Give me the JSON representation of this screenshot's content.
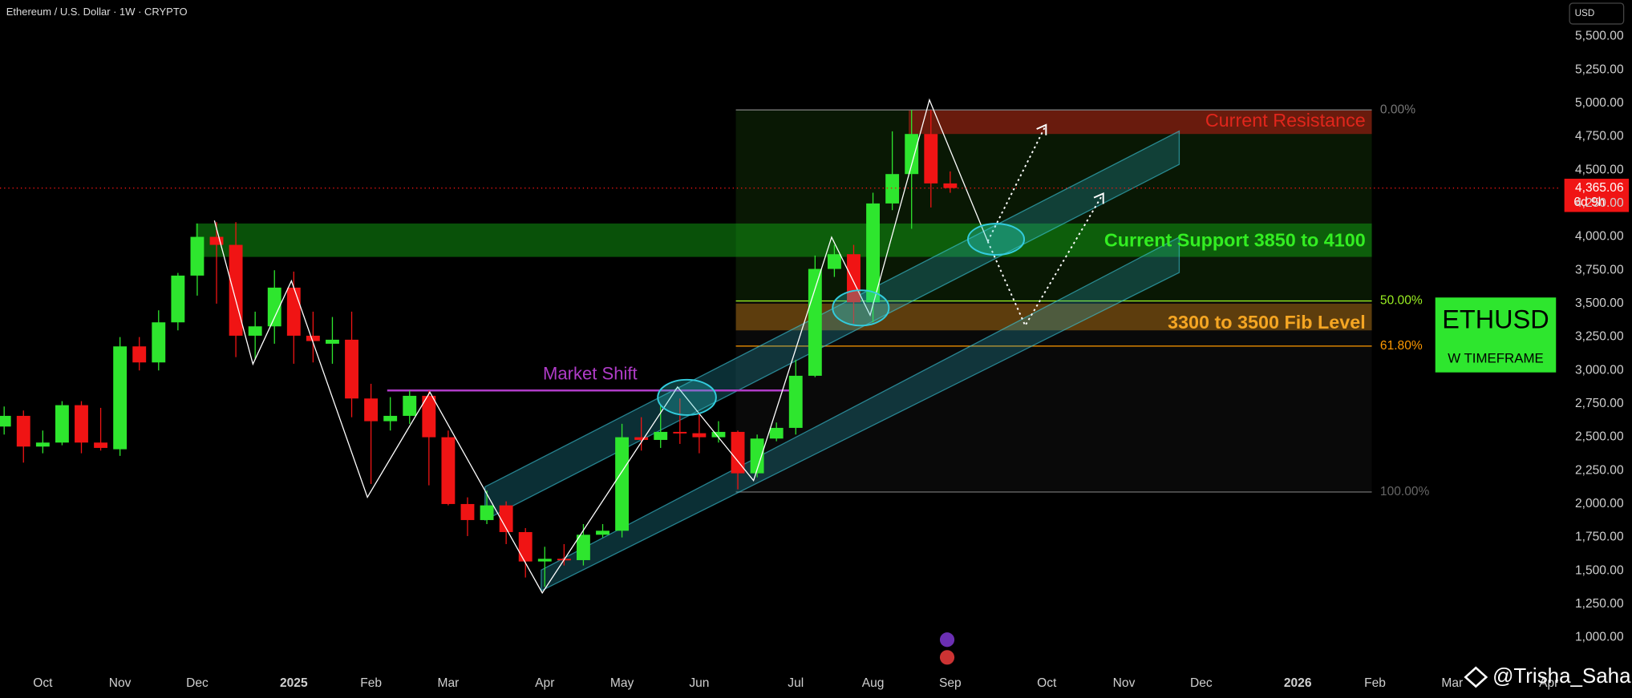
{
  "chart_data": {
    "type": "candlestick",
    "title": "Ethereum / U.S. Dollar · 1W · CRYPTO",
    "currency": "USD",
    "up_color": "#2ee62e",
    "down_color": "#f01414",
    "categories": [
      null,
      null,
      "Oct",
      null,
      null,
      null,
      "Nov",
      null,
      null,
      null,
      "Dec",
      null,
      null,
      null,
      null,
      "2025",
      null,
      null,
      null,
      "Feb",
      null,
      null,
      null,
      "Mar",
      null,
      null,
      null,
      null,
      "Apr",
      null,
      null,
      null,
      "May",
      null,
      null,
      null,
      "Jun",
      null,
      null,
      null,
      null,
      "Jul",
      null,
      null,
      null,
      "Aug",
      null,
      null,
      null,
      "Sep",
      null,
      null,
      null,
      null,
      "Oct",
      null,
      null,
      null,
      "Nov",
      null,
      null,
      null,
      "Dec",
      null,
      null,
      null,
      null,
      "2026",
      null,
      null,
      null,
      "Feb",
      null,
      null,
      null,
      "Mar",
      null,
      null,
      null,
      null,
      "Apr"
    ],
    "open": [
      2580,
      2660,
      2430,
      2460,
      2740,
      2460,
      2410,
      3180,
      3060,
      3360,
      3710,
      4000,
      3940,
      3260,
      3330,
      3620,
      3260,
      3200,
      3230,
      2790,
      2620,
      2660,
      2810,
      2500,
      2000,
      1880,
      1990,
      1790,
      1570,
      1590,
      1580,
      1770,
      1800,
      2500,
      2480,
      2540,
      2530,
      2500,
      2540,
      2230,
      2490,
      2570,
      2960,
      3760,
      3870,
      3510,
      4250,
      4470,
      4770,
      4400,
      null,
      null,
      null,
      null,
      null,
      null,
      null,
      null,
      null,
      null,
      null,
      null,
      null,
      null,
      null,
      null,
      null,
      null,
      null,
      null,
      null,
      null,
      null,
      null,
      null,
      null,
      null,
      null,
      null,
      null,
      null
    ],
    "high": [
      2730,
      2700,
      2550,
      2770,
      2770,
      2720,
      3250,
      3250,
      3450,
      3730,
      4100,
      4110,
      4110,
      3440,
      3750,
      3740,
      3440,
      3400,
      3440,
      2900,
      2800,
      2850,
      2850,
      2550,
      2050,
      2100,
      2020,
      1820,
      1680,
      1700,
      1850,
      1850,
      2600,
      2650,
      2740,
      2790,
      2680,
      2620,
      2550,
      2520,
      2610,
      3080,
      3860,
      3940,
      3940,
      4330,
      4790,
      4950,
      4950,
      4490,
      null,
      null,
      null,
      null,
      null,
      null,
      null,
      null,
      null,
      null,
      null,
      null,
      null,
      null,
      null,
      null,
      null,
      null,
      null,
      null,
      null,
      null,
      null,
      null,
      null,
      null,
      null,
      null,
      null,
      null,
      null
    ],
    "low": [
      2520,
      2310,
      2380,
      2440,
      2380,
      2400,
      2360,
      3000,
      3000,
      3300,
      3560,
      3500,
      3100,
      3080,
      3200,
      3050,
      3060,
      3050,
      2650,
      2150,
      2550,
      2600,
      2140,
      1990,
      1760,
      1850,
      1700,
      1450,
      1380,
      1540,
      1540,
      1750,
      1750,
      2400,
      2420,
      2450,
      2380,
      2460,
      2110,
      2200,
      2470,
      2520,
      2950,
      3700,
      3350,
      3360,
      4200,
      4060,
      4220,
      4330,
      null,
      null,
      null,
      null,
      null,
      null,
      null,
      null,
      null,
      null,
      null,
      null,
      null,
      null,
      null,
      null,
      null,
      null,
      null,
      null,
      null,
      null,
      null,
      null,
      null,
      null,
      null,
      null,
      null,
      null,
      null
    ],
    "close": [
      2660,
      2430,
      2460,
      2740,
      2460,
      2420,
      3180,
      3060,
      3360,
      3710,
      4000,
      3940,
      3260,
      3330,
      3620,
      3260,
      3220,
      3230,
      2790,
      2620,
      2660,
      2810,
      2500,
      2000,
      1880,
      1990,
      1790,
      1570,
      1590,
      1580,
      1770,
      1800,
      2500,
      2480,
      2540,
      2530,
      2500,
      2540,
      2230,
      2490,
      2570,
      2960,
      3760,
      3870,
      3510,
      4250,
      4470,
      4770,
      4400,
      4365.06,
      null,
      null,
      null,
      null,
      null,
      null,
      null,
      null,
      null,
      null,
      null,
      null,
      null,
      null,
      null,
      null,
      null,
      null,
      null,
      null,
      null,
      null,
      null,
      null,
      null,
      null,
      null,
      null,
      null,
      null,
      null
    ],
    "ylim": [
      900,
      5600
    ],
    "yticks": [
      {
        "value": 1000,
        "label": "1,000.00"
      },
      {
        "value": 1250,
        "label": "1,250.00"
      },
      {
        "value": 1500,
        "label": "1,500.00"
      },
      {
        "value": 1750,
        "label": "1,750.00"
      },
      {
        "value": 2000,
        "label": "2,000.00"
      },
      {
        "value": 2250,
        "label": "2,250.00"
      },
      {
        "value": 2500,
        "label": "2,500.00"
      },
      {
        "value": 2750,
        "label": "2,750.00"
      },
      {
        "value": 3000,
        "label": "3,000.00"
      },
      {
        "value": 3250,
        "label": "3,250.00"
      },
      {
        "value": 3500,
        "label": "3,500.00"
      },
      {
        "value": 3750,
        "label": "3,750.00"
      },
      {
        "value": 4000,
        "label": "4,000.00"
      },
      {
        "value": 4250,
        "label": "4,250.00"
      },
      {
        "value": 4500,
        "label": "4,500.00"
      },
      {
        "value": 4750,
        "label": "4,750.00"
      },
      {
        "value": 5000,
        "label": "5,000.00"
      },
      {
        "value": 5250,
        "label": "5,250.00"
      },
      {
        "value": 5500,
        "label": "5,500.00"
      }
    ],
    "grid": false,
    "last_price": {
      "value": 4365.06,
      "label": "4,365.06"
    },
    "countdown": "6d 9h",
    "zones": [
      {
        "label": "Current Resistance",
        "range": [
          4770,
          4950
        ],
        "color": "#e0261c"
      },
      {
        "label": "Current Support 3850 to 4100",
        "range": [
          3850,
          4100
        ],
        "color": "#33ee22"
      },
      {
        "label": "3300 to 3500 Fib Level",
        "range": [
          3300,
          3500
        ],
        "color": "#f5a623"
      }
    ],
    "fib_levels": [
      {
        "value": 4950,
        "label": "0.00%",
        "color": "#777777"
      },
      {
        "value": 3520,
        "label": "50.00%",
        "color": "#99ee22"
      },
      {
        "value": 3182,
        "label": "61.80%",
        "color": "#ff9900"
      },
      {
        "value": 2090,
        "label": "100.00%",
        "color": "#666666"
      }
    ],
    "annotations": [
      {
        "text": "Market Shift",
        "value": 2850,
        "color": "#b03cc8"
      }
    ],
    "badge": {
      "title": "ETHUSD",
      "subtitle": "W TIMEFRAME"
    },
    "watermark": "@Trisha_Saha"
  }
}
